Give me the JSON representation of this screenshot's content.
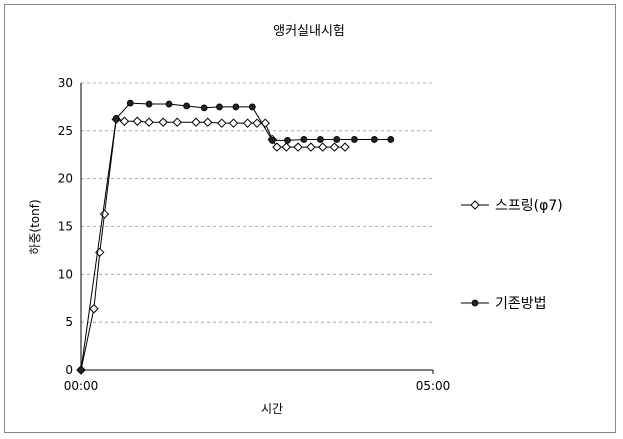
{
  "chart_data": {
    "type": "line",
    "title": "앵커실내시험",
    "xlabel": "시간",
    "ylabel": "하중(tonf)",
    "x_unit": "minutes",
    "xlim": [
      0,
      300
    ],
    "ylim": [
      0,
      30
    ],
    "y_ticks": [
      0,
      5,
      10,
      15,
      20,
      25,
      30
    ],
    "x_ticks": [
      {
        "value": 0,
        "label": "00:00"
      },
      {
        "value": 300,
        "label": "05:00"
      }
    ],
    "grid": "horizontal-dashed",
    "legend": "right",
    "series": [
      {
        "name": "스프링(φ7)",
        "marker": "diamond-open",
        "color": "#000000",
        "points": [
          [
            0,
            0
          ],
          [
            11,
            6.4
          ],
          [
            16,
            12.3
          ],
          [
            20,
            16.3
          ],
          [
            30,
            26.2
          ],
          [
            37,
            26.0
          ],
          [
            48,
            26.0
          ],
          [
            58,
            25.9
          ],
          [
            70,
            25.9
          ],
          [
            82,
            25.9
          ],
          [
            98,
            25.9
          ],
          [
            108,
            25.9
          ],
          [
            120,
            25.8
          ],
          [
            130,
            25.8
          ],
          [
            142,
            25.8
          ],
          [
            150,
            25.8
          ],
          [
            157,
            25.8
          ],
          [
            163,
            24.1
          ],
          [
            167,
            23.3
          ],
          [
            175,
            23.3
          ],
          [
            185,
            23.3
          ],
          [
            196,
            23.3
          ],
          [
            206,
            23.3
          ],
          [
            216,
            23.3
          ],
          [
            225,
            23.3
          ]
        ]
      },
      {
        "name": "기존방법",
        "marker": "circle-filled",
        "color": "#000000",
        "points": [
          [
            0,
            0
          ],
          [
            30,
            26.3
          ],
          [
            42,
            27.9
          ],
          [
            58,
            27.8
          ],
          [
            75,
            27.8
          ],
          [
            90,
            27.6
          ],
          [
            105,
            27.4
          ],
          [
            118,
            27.5
          ],
          [
            132,
            27.5
          ],
          [
            146,
            27.5
          ],
          [
            163,
            24.0
          ],
          [
            176,
            24.0
          ],
          [
            190,
            24.1
          ],
          [
            204,
            24.1
          ],
          [
            218,
            24.1
          ],
          [
            233,
            24.1
          ],
          [
            250,
            24.1
          ],
          [
            264,
            24.1
          ]
        ]
      }
    ]
  }
}
